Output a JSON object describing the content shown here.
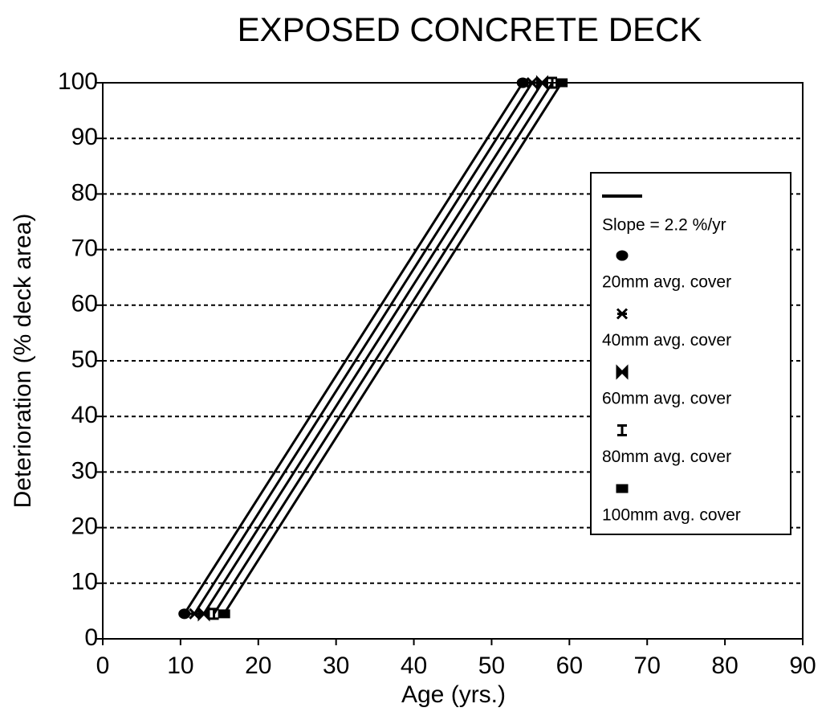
{
  "chart_data": {
    "type": "line",
    "title": "EXPOSED CONCRETE DECK",
    "x_label": "Age (yrs.)",
    "y_label": "Deterioration (% deck area)",
    "fit_label": "Slope = 2.2 %/yr",
    "color": "#000000",
    "series": [
      {
        "name": "20mm avg. cover",
        "marker": "circle",
        "x": [
          10.5,
          54
        ],
        "values": [
          4.5,
          100
        ]
      },
      {
        "name": "40mm avg. cover",
        "marker": "star",
        "x": [
          11.8,
          55.2
        ],
        "values": [
          4.5,
          100
        ]
      },
      {
        "name": "60mm avg. cover",
        "marker": "bowtie",
        "x": [
          13,
          56.5
        ],
        "values": [
          4.5,
          100
        ]
      },
      {
        "name": "80mm avg. cover",
        "marker": "ibeam",
        "x": [
          14.3,
          57.8
        ],
        "values": [
          4.5,
          100
        ]
      },
      {
        "name": "100mm avg. cover",
        "marker": "square",
        "x": [
          15.6,
          59
        ],
        "values": [
          4.5,
          100
        ]
      }
    ],
    "xlim": [
      0,
      90
    ],
    "xticks": [
      0,
      10,
      20,
      30,
      40,
      50,
      60,
      70,
      80,
      90
    ],
    "ylim": [
      0,
      100
    ],
    "yticks": [
      0,
      10,
      20,
      30,
      40,
      50,
      60,
      70,
      80,
      90,
      100
    ],
    "grid": true
  }
}
